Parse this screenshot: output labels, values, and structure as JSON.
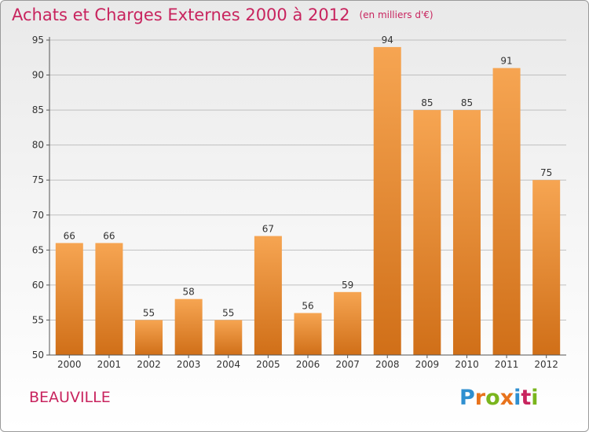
{
  "header": {
    "title": "Achats et Charges Externes 2000 à 2012",
    "subtitle": "(en milliers d'€)"
  },
  "footer": {
    "town": "BEAUVILLE",
    "logo_letters": [
      "P",
      "r",
      "o",
      "x",
      "i",
      "t",
      "i"
    ],
    "logo_colors": [
      "#2f8fd0",
      "#e8731c",
      "#7ab51d",
      "#e8731c",
      "#2f8fd0",
      "#c8245e",
      "#7ab51d"
    ]
  },
  "colors": {
    "bar_top": "#f6a552",
    "bar_bottom": "#d06f18",
    "axis": "#555555",
    "grid": "#bfbfbf"
  },
  "chart_data": {
    "type": "bar",
    "title": "Achats et Charges Externes 2000 à 2012",
    "subtitle": "(en milliers d'€)",
    "categories": [
      "2000",
      "2001",
      "2002",
      "2003",
      "2004",
      "2005",
      "2006",
      "2007",
      "2008",
      "2009",
      "2010",
      "2011",
      "2012"
    ],
    "values": [
      66,
      66,
      55,
      58,
      55,
      67,
      56,
      59,
      94,
      85,
      85,
      91,
      75
    ],
    "ylim": [
      50,
      95
    ],
    "yticks": [
      50,
      55,
      60,
      65,
      70,
      75,
      80,
      85,
      90,
      95
    ],
    "grid": true,
    "data_labels": true
  }
}
